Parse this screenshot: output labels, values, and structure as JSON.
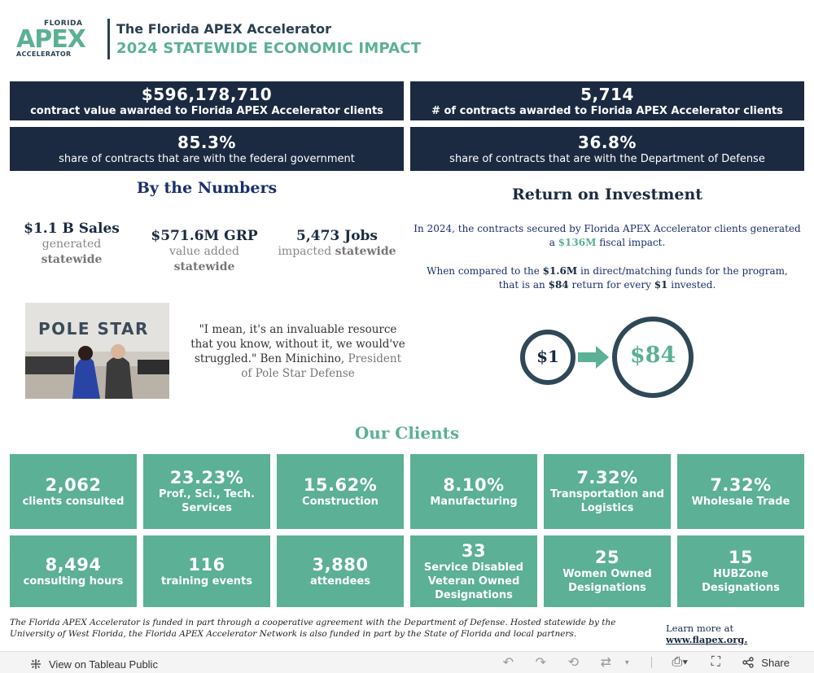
{
  "header": {
    "logo": {
      "state": "FLORIDA",
      "name": "APEX",
      "sub": "ACCELERATOR"
    },
    "title": "The Florida APEX Accelerator",
    "subtitle": "2024 STATEWIDE ECONOMIC IMPACT"
  },
  "stats": [
    {
      "value": "$596,178,710",
      "label": "contract value awarded to Florida APEX Accelerator clients"
    },
    {
      "value": "5,714",
      "label": "# of contracts awarded to Florida APEX Accelerator clients"
    },
    {
      "value": "85.3%",
      "label": "share of contracts that are with the federal government"
    },
    {
      "value": "36.8%",
      "label": "share of contracts that are with the Department of Defense"
    }
  ],
  "by_numbers": {
    "heading": "By the Numbers",
    "items": [
      {
        "value": "$1.1 B Sales",
        "line1": "generated",
        "line2": "statewide"
      },
      {
        "value": "$571.6M GRP",
        "line1": "value added",
        "line2": "statewide"
      },
      {
        "value": "5,473 Jobs",
        "line1": "impacted",
        "line2": "statewide"
      }
    ]
  },
  "roi": {
    "heading": "Return on Investment",
    "p1_a": "In 2024, the contracts secured by Florida APEX Accelerator clients generated",
    "p1_b": "a",
    "p1_amount": "$136M",
    "p1_c": "fiscal impact.",
    "p2_a": "When compared to the",
    "p2_amount": "$1.6M",
    "p2_b": "in direct/matching funds for the program, that is an",
    "p2_return": "$84",
    "p2_c": "return for every",
    "p2_dollar": "$1",
    "p2_d": "invested.",
    "graphic_from": "$1",
    "graphic_to": "$84",
    "colors": {
      "ring": "#2f4858",
      "arrow": "#5bb095"
    }
  },
  "photo": {
    "sign": "POLE STAR"
  },
  "quote": {
    "text": "\"I mean, it's an invaluable resource that you know, without it, we would've struggled.\" Ben Minichino,",
    "role": "President of Pole Star Defense"
  },
  "clients": {
    "heading": "Our Clients",
    "row1": [
      {
        "value": "2,062",
        "label": "clients consulted"
      },
      {
        "value": "23.23%",
        "label": "Prof., Sci., Tech. Services"
      },
      {
        "value": "15.62%",
        "label": "Construction"
      },
      {
        "value": "8.10%",
        "label": "Manufacturing"
      },
      {
        "value": "7.32%",
        "label": "Transportation and Logistics"
      },
      {
        "value": "7.32%",
        "label": "Wholesale Trade"
      }
    ],
    "row2": [
      {
        "value": "8,494",
        "label": "consulting hours"
      },
      {
        "value": "116",
        "label": "training events"
      },
      {
        "value": "3,880",
        "label": "attendees"
      },
      {
        "value": "33",
        "label": "Service Disabled Veteran Owned Designations"
      },
      {
        "value": "25",
        "label": "Women Owned Designations"
      },
      {
        "value": "15",
        "label": "HUBZone Designations"
      }
    ]
  },
  "footnote": "The Florida APEX Accelerator is funded in part through a cooperative agreement with the Department of Defense. Hosted statewide by the University of West Florida, the Florida APEX Accelerator Network is also funded in part by the State of Florida and local partners.",
  "learn_more": {
    "prefix": "Learn more at",
    "link": "www.flapex.org."
  },
  "toolbar": {
    "view_label": "View on Tableau Public",
    "share_label": "Share"
  },
  "colors": {
    "navy": "#1b2a41",
    "green": "#5bb095"
  }
}
